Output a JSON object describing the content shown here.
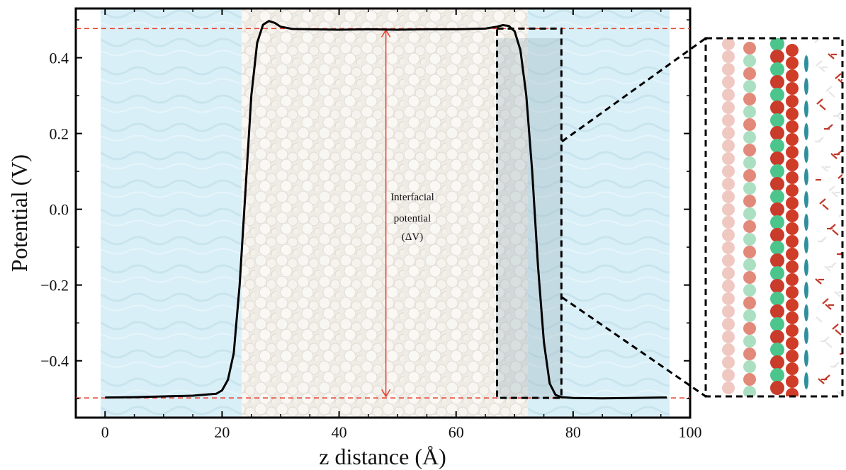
{
  "chart_data": {
    "type": "line",
    "xlabel": "z distance (Å)",
    "ylabel": "Potential (V)",
    "xlim": [
      -5,
      100
    ],
    "ylim": [
      -0.55,
      0.53
    ],
    "x_ticks": [
      0,
      20,
      40,
      60,
      80,
      100
    ],
    "x_tick_labels": [
      "0",
      "20",
      "40",
      "60",
      "80",
      "100"
    ],
    "y_ticks": [
      0.4,
      0.2,
      0.0,
      -0.2,
      -0.4
    ],
    "y_tick_labels": [
      "0.4",
      "0.2",
      "0.0",
      "−0.2",
      "−0.4"
    ],
    "grid": false,
    "series": [
      {
        "color": "#000000",
        "x": [
          0,
          5,
          10,
          15,
          19,
          20,
          21,
          22,
          23,
          24,
          25,
          26,
          27,
          28,
          29,
          30,
          32,
          35,
          40,
          45,
          50,
          55,
          60,
          65,
          67,
          68,
          69,
          70,
          71,
          72,
          73,
          74,
          75,
          76,
          77,
          78,
          80,
          85,
          90,
          95,
          96
        ],
        "y": [
          -0.497,
          -0.496,
          -0.494,
          -0.492,
          -0.487,
          -0.478,
          -0.45,
          -0.38,
          -0.2,
          0.05,
          0.3,
          0.44,
          0.487,
          0.497,
          0.492,
          0.482,
          0.476,
          0.475,
          0.474,
          0.475,
          0.474,
          0.475,
          0.475,
          0.477,
          0.482,
          0.486,
          0.484,
          0.47,
          0.42,
          0.3,
          0.1,
          -0.15,
          -0.35,
          -0.46,
          -0.49,
          -0.496,
          -0.498,
          -0.499,
          -0.498,
          -0.497,
          -0.497
        ]
      }
    ],
    "reference_lines": [
      {
        "y": 0.477,
        "color": "#e8402f",
        "style": "dashed"
      },
      {
        "y": -0.498,
        "color": "#e8402f",
        "style": "dashed"
      }
    ],
    "annotation": {
      "lines": [
        "Interfacial",
        "potential",
        "(ΔV)"
      ],
      "arrow_x": 48,
      "arrow_y": [
        0.477,
        -0.498
      ],
      "color": "#e8402f"
    },
    "inset_box": {
      "x": [
        67,
        78
      ],
      "y": [
        0.477,
        -0.498
      ]
    }
  },
  "colors": {
    "water": "#d8eef6",
    "slab": "#efece7",
    "zoom_lines": "#000000"
  }
}
